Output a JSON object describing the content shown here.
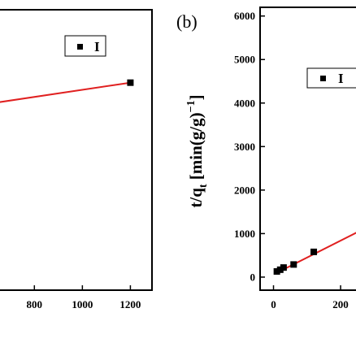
{
  "chart_data": [
    {
      "type": "scatter",
      "title": "",
      "xlabel": "",
      "ylabel": "",
      "xlim": [
        650,
        1290
      ],
      "ylim": [
        0,
        1
      ],
      "x_ticks": [
        "800",
        "1000",
        "1200"
      ],
      "series": [
        {
          "name": "I",
          "marker": "square",
          "points": [
            {
              "x": 1200,
              "y": 0.74
            }
          ],
          "fit_line": {
            "x": [
              650,
              1200
            ],
            "y": [
              0.67,
              0.74
            ],
            "color": "#e02020"
          }
        }
      ],
      "legend": {
        "placement": "top-right",
        "entries": [
          "I"
        ]
      },
      "grid": false
    },
    {
      "type": "scatter",
      "panel_label": "(b)",
      "title": "",
      "xlabel": "",
      "ylabel_main": "t/q",
      "ylabel_sub": "t",
      "ylabel_rest": " [min(g/g)",
      "ylabel_sup": "−1",
      "ylabel_end": "]",
      "xlim": [
        -40,
        275
      ],
      "ylim": [
        -300,
        6200
      ],
      "x_ticks": [
        "0",
        "200"
      ],
      "y_ticks": [
        "0",
        "1000",
        "2000",
        "3000",
        "4000",
        "5000",
        "6000"
      ],
      "series": [
        {
          "name": "I",
          "marker": "square",
          "points": [
            {
              "x": 10,
              "y": 130
            },
            {
              "x": 20,
              "y": 170
            },
            {
              "x": 30,
              "y": 220
            },
            {
              "x": 60,
              "y": 290
            },
            {
              "x": 120,
              "y": 580
            }
          ],
          "fit_line": {
            "x": [
              10,
              275
            ],
            "y": [
              100,
              1130
            ],
            "color": "#e02020"
          }
        }
      ],
      "legend": {
        "placement": "top-right",
        "entries": [
          "I"
        ]
      },
      "grid": false
    }
  ]
}
